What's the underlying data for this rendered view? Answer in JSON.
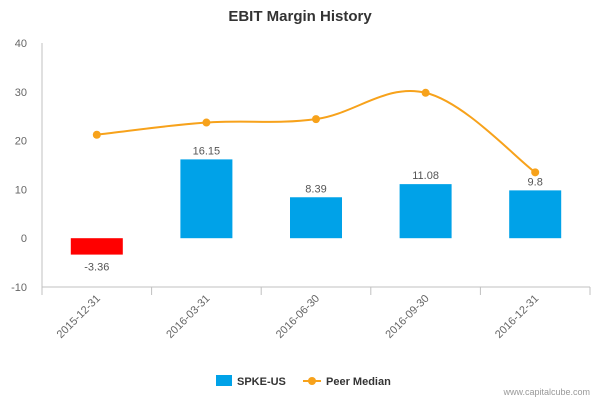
{
  "chart_data": {
    "type": "bar",
    "title": "EBIT Margin History",
    "xlabel": "",
    "ylabel": "",
    "categories": [
      "2015-12-31",
      "2016-03-31",
      "2016-06-30",
      "2016-09-30",
      "2016-12-31"
    ],
    "ylim": [
      -10,
      40
    ],
    "yticks": [
      -10,
      0,
      10,
      20,
      30,
      40
    ],
    "grid": false,
    "legend_position": "bottom",
    "series": [
      {
        "name": "SPKE-US",
        "type": "bar",
        "values": [
          -3.36,
          16.15,
          8.39,
          11.08,
          9.8
        ],
        "labels": [
          "-3.36",
          "16.15",
          "8.39",
          "11.08",
          "9.8"
        ],
        "color": "#00a2e8",
        "negative_color": "#ff0000"
      },
      {
        "name": "Peer Median",
        "type": "line",
        "values": [
          21.2,
          23.7,
          24.4,
          29.8,
          13.5
        ],
        "color": "#f7a21b"
      }
    ]
  },
  "credit": "www.capitalcube.com"
}
